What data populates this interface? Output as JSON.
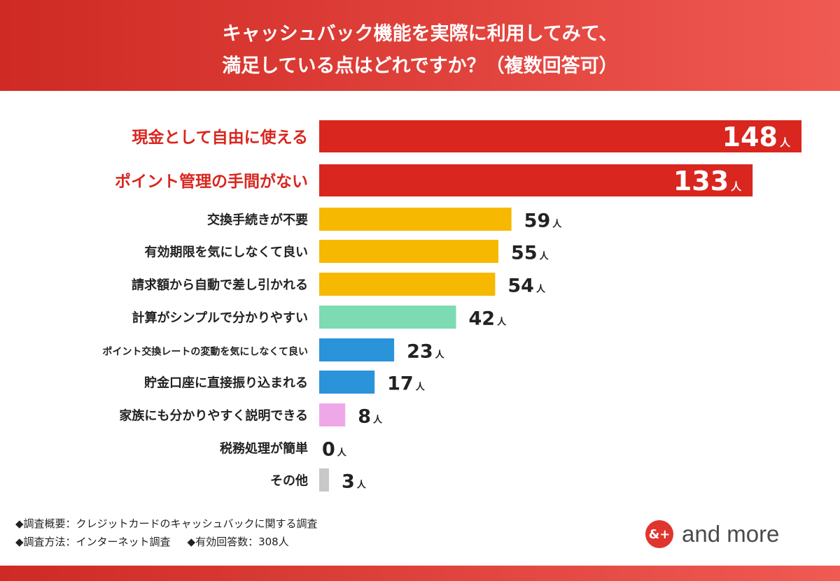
{
  "header": {
    "title_line1": "キャッシュバック機能を実際に利用してみて、",
    "title_line2": "満足している点はどれですか？（複数回答可）"
  },
  "chart_data": {
    "type": "bar",
    "orientation": "horizontal",
    "unit": "人",
    "categories": [
      "現金として自由に使える",
      "ポイント管理の手間がない",
      "交換手続きが不要",
      "有効期限を気にしなくて良い",
      "請求額から自動で差し引かれる",
      "計算がシンプルで分かりやすい",
      "ポイント交換レートの変動を気にしなくて良い",
      "貯金口座に直接振り込まれる",
      "家族にも分かりやすく説明できる",
      "税務処理が簡単",
      "その他"
    ],
    "values": [
      148,
      133,
      59,
      55,
      54,
      42,
      23,
      17,
      8,
      0,
      3
    ],
    "colors": [
      "#d9261f",
      "#d9261f",
      "#f6b800",
      "#f6b800",
      "#f6b800",
      "#7ddbb4",
      "#2a93da",
      "#2a93da",
      "#eea8e8",
      "#cfcfcf",
      "#c8c8c8"
    ],
    "highlight_label_color": "#d9261f",
    "xlim": [
      0,
      148
    ]
  },
  "notes": {
    "line1": "◆調査概要：クレジットカードのキャッシュバックに関する調査",
    "line2a": "◆調査方法：インターネット調査",
    "line2b": "◆有効回答数：308人"
  },
  "logo": {
    "mark": "&+",
    "text": "and more",
    "color": "#e0352e"
  }
}
